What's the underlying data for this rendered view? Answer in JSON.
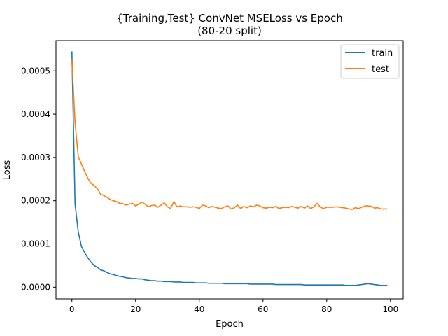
{
  "chart_data": {
    "type": "line",
    "title_lines": [
      "{Training,Test} ConvNet MSELoss vs Epoch",
      "(80-20 split)"
    ],
    "xlabel": "Epoch",
    "ylabel": "Loss",
    "xlim": [
      -5,
      104
    ],
    "ylim": [
      -2.7e-05,
      0.00057
    ],
    "xticks": [
      0,
      20,
      40,
      60,
      80,
      100
    ],
    "xtick_labels": [
      "0",
      "20",
      "40",
      "60",
      "80",
      "100"
    ],
    "yticks": [
      0.0,
      0.0001,
      0.0002,
      0.0003,
      0.0004,
      0.0005
    ],
    "ytick_labels": [
      "0.0000",
      "0.0001",
      "0.0002",
      "0.0003",
      "0.0004",
      "0.0005"
    ],
    "grid": false,
    "legend_position": "top-right",
    "series": [
      {
        "name": "train",
        "color": "#1f77b4",
        "x_start": 0,
        "values": [
          0.000545,
          0.000192,
          0.000128,
          9.4e-05,
          8e-05,
          6.8e-05,
          5.8e-05,
          5e-05,
          4.6e-05,
          4e-05,
          3.8e-05,
          3.4e-05,
          3.1e-05,
          2.9e-05,
          2.7e-05,
          2.5e-05,
          2.4e-05,
          2.2e-05,
          2.1e-05,
          2e-05,
          2e-05,
          1.9e-05,
          1.9e-05,
          1.7e-05,
          1.6e-05,
          1.5e-05,
          1.5e-05,
          1.4e-05,
          1.4e-05,
          1.3e-05,
          1.3e-05,
          1.3e-05,
          1.2e-05,
          1.2e-05,
          1.2e-05,
          1.1e-05,
          1.1e-05,
          1.1e-05,
          1.1e-05,
          1e-05,
          1e-05,
          1e-05,
          1e-05,
          9e-06,
          9e-06,
          9e-06,
          9e-06,
          9e-06,
          8e-06,
          8e-06,
          8e-06,
          8e-06,
          8e-06,
          8e-06,
          8e-06,
          8e-06,
          7e-06,
          7e-06,
          7e-06,
          7e-06,
          7e-06,
          7e-06,
          7e-06,
          7e-06,
          6e-06,
          6e-06,
          6e-06,
          6e-06,
          6e-06,
          6e-06,
          6e-06,
          6e-06,
          6e-06,
          5e-06,
          5e-06,
          5e-06,
          5e-06,
          5e-06,
          5e-06,
          5e-06,
          5e-06,
          5e-06,
          5e-06,
          5e-06,
          5e-06,
          5e-06,
          4e-06,
          4e-06,
          4e-06,
          4e-06,
          5e-06,
          6e-06,
          7e-06,
          8e-06,
          7e-06,
          6e-06,
          5e-06,
          4e-06,
          4e-06,
          4e-06
        ]
      },
      {
        "name": "test",
        "color": "#ff7f0e",
        "x_start": 0,
        "values": [
          0.000525,
          0.00038,
          0.000302,
          0.000285,
          0.000268,
          0.000252,
          0.00024,
          0.000235,
          0.000228,
          0.000215,
          0.000212,
          0.000208,
          0.000203,
          0.0002,
          0.000198,
          0.000194,
          0.000193,
          0.00019,
          0.000192,
          0.000194,
          0.000188,
          0.000192,
          0.000197,
          0.000192,
          0.000186,
          0.000189,
          0.00019,
          0.000185,
          0.00019,
          0.000195,
          0.000186,
          0.000182,
          0.000198,
          0.000186,
          0.000188,
          0.000186,
          0.000186,
          0.000185,
          0.000186,
          0.000185,
          0.000182,
          0.00019,
          0.000188,
          0.000184,
          0.000187,
          0.000185,
          0.000183,
          0.000182,
          0.000186,
          0.000188,
          0.000181,
          0.000184,
          0.00019,
          0.000182,
          0.000187,
          0.000184,
          0.000188,
          0.000186,
          0.00019,
          0.000188,
          0.000184,
          0.000183,
          0.000185,
          0.000184,
          0.000187,
          0.000182,
          0.000184,
          0.000185,
          0.000184,
          0.000187,
          0.000185,
          0.000183,
          0.000187,
          0.000183,
          0.000188,
          0.000182,
          0.000186,
          0.000194,
          0.000185,
          0.000182,
          0.000185,
          0.000185,
          0.000185,
          0.000186,
          0.000185,
          0.000184,
          0.000183,
          0.000181,
          0.00018,
          0.000184,
          0.000182,
          0.000185,
          0.000188,
          0.000188,
          0.000187,
          0.000183,
          0.000184,
          0.000181,
          0.000181,
          0.000181
        ]
      }
    ]
  }
}
